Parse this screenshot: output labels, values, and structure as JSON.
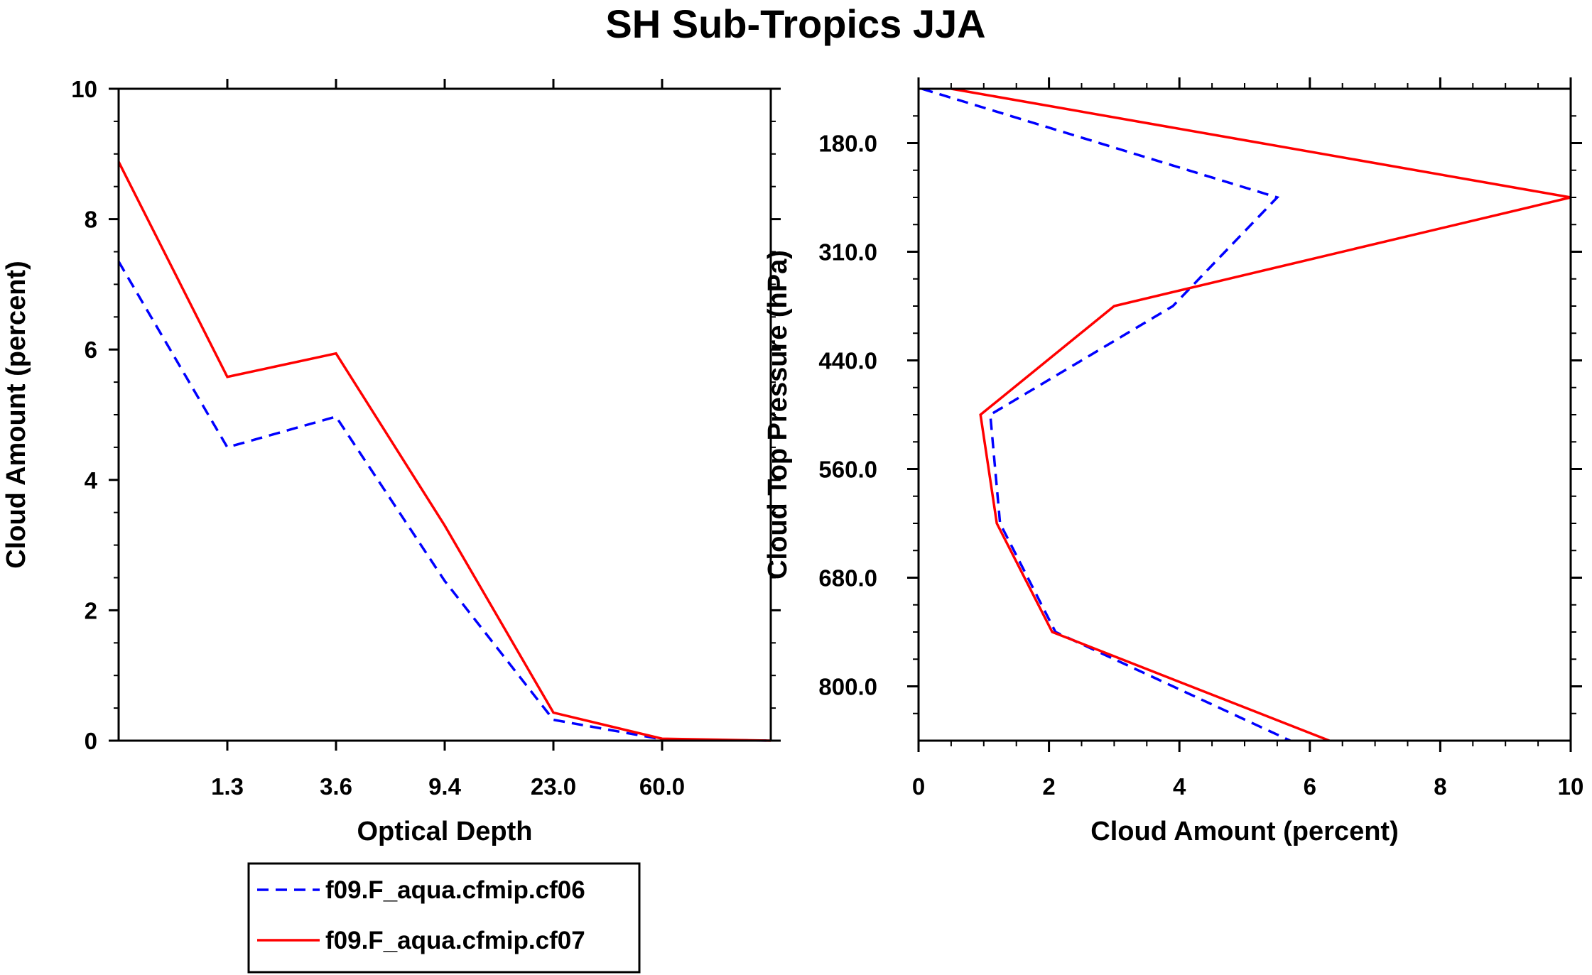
{
  "title": "SH Sub-Tropics JJA",
  "colors": {
    "cf06": "#0000ff",
    "cf07": "#ff0000",
    "axis": "#000000"
  },
  "chart_data": [
    {
      "type": "line",
      "xlabel": "Optical Depth",
      "ylabel": "Cloud Amount (percent)",
      "x_bins": 7,
      "x_tick_positions": [
        1,
        2,
        3,
        4,
        5
      ],
      "x_tick_labels": [
        "1.3",
        "3.6",
        "9.4",
        "23.0",
        "60.0"
      ],
      "ylim": [
        0,
        10
      ],
      "y_ticks": [
        0,
        2,
        4,
        6,
        8,
        10
      ],
      "y_tick_labels": [
        "0",
        "2",
        "4",
        "6",
        "8",
        "10"
      ],
      "x": [
        0,
        1,
        2,
        3,
        4,
        5,
        6
      ],
      "series": [
        {
          "name": "f09.F_aqua.cfmip.cf06",
          "style": "dashed",
          "values": [
            7.35,
            4.5,
            4.97,
            2.45,
            0.32,
            0.02,
            0.0
          ]
        },
        {
          "name": "f09.F_aqua.cfmip.cf07",
          "style": "solid",
          "values": [
            8.88,
            5.58,
            5.94,
            3.3,
            0.43,
            0.03,
            0.0
          ]
        }
      ]
    },
    {
      "type": "line",
      "xlabel": "Cloud Amount (percent)",
      "ylabel": "Cloud Top Pressure (hPa)",
      "xlim": [
        0,
        10
      ],
      "x_ticks": [
        0,
        2,
        4,
        6,
        8,
        10
      ],
      "x_tick_labels": [
        "0",
        "2",
        "4",
        "6",
        "8",
        "10"
      ],
      "y_bins": 6,
      "y_tick_positions": [
        0.5,
        1.5,
        2.5,
        3.5,
        4.5,
        5.5
      ],
      "y_tick_labels": [
        "180.0",
        "310.0",
        "440.0",
        "560.0",
        "680.0",
        "800.0"
      ],
      "y": [
        0,
        1,
        2,
        3,
        4,
        5,
        6
      ],
      "series": [
        {
          "name": "f09.F_aqua.cfmip.cf06",
          "style": "dashed",
          "values": [
            0.05,
            5.5,
            3.9,
            1.1,
            1.25,
            2.1,
            5.7
          ]
        },
        {
          "name": "f09.F_aqua.cfmip.cf07",
          "style": "solid",
          "values": [
            0.5,
            10.0,
            3.0,
            0.95,
            1.2,
            2.05,
            6.3
          ]
        }
      ]
    }
  ],
  "legend": {
    "entries": [
      {
        "label": "f09.F_aqua.cfmip.cf06",
        "style": "dashed"
      },
      {
        "label": "f09.F_aqua.cfmip.cf07",
        "style": "solid"
      }
    ]
  }
}
